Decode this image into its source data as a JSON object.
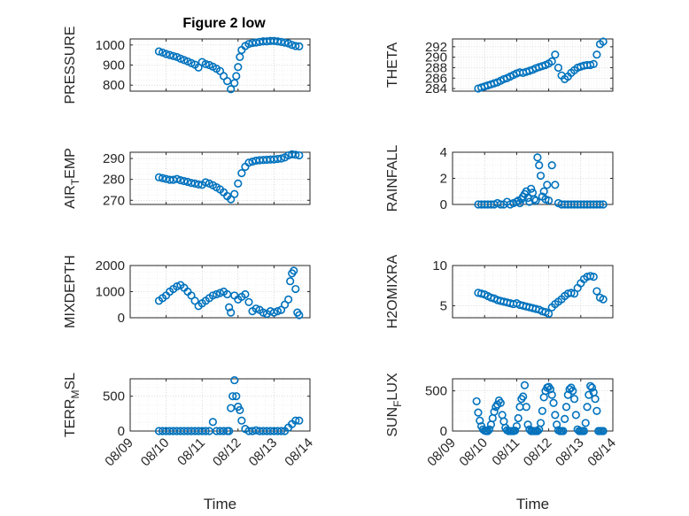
{
  "figure": {
    "title": "Figure 2 low",
    "marker_color": "#0072BD",
    "marker": "circle"
  },
  "chart_data": [
    {
      "type": "scatter",
      "title": "Figure 2 low",
      "ylabel": "PRESSURE",
      "xlabel": "",
      "xlim": [
        0,
        5
      ],
      "ylim": [
        770,
        1030
      ],
      "yticks": [
        800,
        900,
        1000
      ],
      "xtick_labels": [],
      "grid": true,
      "x": [
        0.8,
        0.9,
        1.0,
        1.1,
        1.2,
        1.3,
        1.4,
        1.5,
        1.6,
        1.7,
        1.8,
        1.9,
        2.0,
        2.1,
        2.2,
        2.3,
        2.4,
        2.5,
        2.6,
        2.7,
        2.8,
        2.9,
        2.95,
        3.0,
        3.05,
        3.1,
        3.2,
        3.3,
        3.4,
        3.5,
        3.6,
        3.7,
        3.8,
        3.9,
        4.0,
        4.1,
        4.2,
        4.3,
        4.4,
        4.5,
        4.6,
        4.7
      ],
      "y": [
        968,
        962,
        955,
        950,
        945,
        940,
        932,
        925,
        918,
        910,
        902,
        888,
        915,
        905,
        900,
        892,
        882,
        870,
        845,
        820,
        780,
        810,
        845,
        890,
        940,
        975,
        995,
        1005,
        1010,
        1012,
        1015,
        1018,
        1018,
        1020,
        1020,
        1018,
        1015,
        1012,
        1008,
        1000,
        995,
        993
      ]
    },
    {
      "type": "scatter",
      "title": "",
      "ylabel": "THETA",
      "xlabel": "",
      "xlim": [
        0,
        5
      ],
      "ylim": [
        283.5,
        293.5
      ],
      "yticks": [
        284,
        286,
        288,
        290,
        292
      ],
      "xtick_labels": [],
      "grid": true,
      "x": [
        0.8,
        0.9,
        1.0,
        1.1,
        1.2,
        1.3,
        1.4,
        1.5,
        1.6,
        1.7,
        1.8,
        1.9,
        2.0,
        2.1,
        2.2,
        2.3,
        2.4,
        2.5,
        2.6,
        2.7,
        2.8,
        2.9,
        3.0,
        3.1,
        3.2,
        3.3,
        3.4,
        3.5,
        3.6,
        3.7,
        3.8,
        3.9,
        4.0,
        4.1,
        4.2,
        4.3,
        4.4,
        4.5,
        4.6,
        4.7
      ],
      "y": [
        284.0,
        284.2,
        284.4,
        284.6,
        284.8,
        285.0,
        285.2,
        285.5,
        285.8,
        286.0,
        286.3,
        286.6,
        286.9,
        287.1,
        287.0,
        287.2,
        287.4,
        287.6,
        287.9,
        288.1,
        288.3,
        288.5,
        288.8,
        289.2,
        290.5,
        288.0,
        286.5,
        285.8,
        286.3,
        287.0,
        287.5,
        288.0,
        288.2,
        288.4,
        288.5,
        288.5,
        288.7,
        290.5,
        292.5,
        293.0
      ]
    },
    {
      "type": "scatter",
      "title": "",
      "ylabel": "AIR_TEMP",
      "xlabel": "",
      "xlim": [
        0,
        5
      ],
      "ylim": [
        268,
        293
      ],
      "yticks": [
        270,
        280,
        290
      ],
      "xtick_labels": [],
      "grid": true,
      "x": [
        0.8,
        0.9,
        1.0,
        1.1,
        1.2,
        1.3,
        1.4,
        1.5,
        1.6,
        1.7,
        1.8,
        1.9,
        2.0,
        2.1,
        2.2,
        2.3,
        2.4,
        2.5,
        2.6,
        2.7,
        2.8,
        2.9,
        3.0,
        3.1,
        3.2,
        3.3,
        3.4,
        3.5,
        3.6,
        3.7,
        3.8,
        3.9,
        4.0,
        4.1,
        4.2,
        4.3,
        4.4,
        4.5,
        4.6,
        4.7
      ],
      "y": [
        281,
        280.6,
        280.2,
        279.8,
        279.8,
        280.2,
        279.6,
        279.2,
        278.8,
        278.3,
        278.0,
        277.6,
        277.4,
        278.6,
        278.0,
        277.2,
        276.2,
        275.2,
        273.8,
        272.0,
        270.5,
        273.0,
        278.0,
        283.0,
        286.0,
        288.0,
        288.5,
        289.0,
        289.2,
        289.3,
        289.4,
        289.5,
        289.6,
        289.8,
        290.0,
        290.5,
        291.5,
        292.0,
        291.8,
        291.5
      ]
    },
    {
      "type": "scatter",
      "title": "",
      "ylabel": "RAINFALL",
      "xlabel": "",
      "xlim": [
        0,
        5
      ],
      "ylim": [
        0,
        4
      ],
      "yticks": [
        0,
        2,
        4
      ],
      "xtick_labels": [],
      "grid": true,
      "x": [
        0.8,
        0.9,
        1.0,
        1.1,
        1.2,
        1.3,
        1.4,
        1.5,
        1.6,
        1.7,
        1.8,
        1.9,
        2.0,
        2.05,
        2.1,
        2.15,
        2.2,
        2.25,
        2.3,
        2.35,
        2.4,
        2.45,
        2.5,
        2.55,
        2.6,
        2.65,
        2.7,
        2.75,
        2.8,
        2.85,
        2.9,
        2.95,
        3.0,
        3.1,
        3.2,
        3.3,
        3.4,
        3.5,
        3.6,
        3.7,
        3.8,
        3.9,
        4.0,
        4.1,
        4.2,
        4.3,
        4.4,
        4.5,
        4.6,
        4.7
      ],
      "y": [
        0,
        0,
        0,
        0,
        0,
        0,
        0.1,
        0,
        0,
        0.2,
        0,
        0.1,
        0.2,
        0.3,
        0.1,
        0.4,
        0.6,
        0.8,
        1.0,
        0.5,
        0.2,
        1.2,
        0.9,
        0.4,
        0.3,
        3.6,
        3.0,
        2.2,
        0.6,
        1.0,
        0.4,
        1.5,
        0.3,
        3.0,
        1.5,
        0.1,
        0,
        0,
        0,
        0,
        0,
        0,
        0,
        0,
        0,
        0,
        0,
        0,
        0,
        0
      ]
    },
    {
      "type": "scatter",
      "title": "",
      "ylabel": "MIXDEPTH",
      "xlabel": "",
      "xlim": [
        0,
        5
      ],
      "ylim": [
        0,
        2000
      ],
      "yticks": [
        0,
        1000,
        2000
      ],
      "xtick_labels": [],
      "grid": true,
      "x": [
        0.8,
        0.9,
        1.0,
        1.1,
        1.2,
        1.3,
        1.4,
        1.5,
        1.6,
        1.7,
        1.8,
        1.9,
        2.0,
        2.1,
        2.2,
        2.3,
        2.4,
        2.5,
        2.6,
        2.7,
        2.75,
        2.8,
        2.9,
        3.0,
        3.1,
        3.2,
        3.3,
        3.4,
        3.5,
        3.6,
        3.7,
        3.8,
        3.9,
        4.0,
        4.1,
        4.2,
        4.3,
        4.4,
        4.45,
        4.5,
        4.55,
        4.6,
        4.65,
        4.7
      ],
      "y": [
        650,
        750,
        850,
        1000,
        1100,
        1200,
        1250,
        1150,
        1000,
        850,
        650,
        450,
        550,
        650,
        750,
        850,
        900,
        950,
        1000,
        900,
        400,
        200,
        850,
        700,
        800,
        900,
        600,
        250,
        350,
        300,
        200,
        150,
        250,
        200,
        250,
        300,
        500,
        700,
        1400,
        1700,
        1800,
        1100,
        200,
        100
      ]
    },
    {
      "type": "scatter",
      "title": "",
      "ylabel": "H2OMIXRA",
      "xlabel": "",
      "xlim": [
        0,
        5
      ],
      "ylim": [
        3.5,
        10
      ],
      "yticks": [
        5,
        10
      ],
      "xtick_labels": [],
      "grid": true,
      "x": [
        0.8,
        0.9,
        1.0,
        1.1,
        1.2,
        1.3,
        1.4,
        1.5,
        1.6,
        1.7,
        1.8,
        1.9,
        2.0,
        2.1,
        2.2,
        2.3,
        2.4,
        2.5,
        2.6,
        2.7,
        2.8,
        2.9,
        3.0,
        3.1,
        3.2,
        3.3,
        3.4,
        3.5,
        3.6,
        3.7,
        3.8,
        3.9,
        4.0,
        4.1,
        4.2,
        4.3,
        4.4,
        4.5,
        4.6,
        4.7
      ],
      "y": [
        6.6,
        6.5,
        6.4,
        6.2,
        6.0,
        5.9,
        5.7,
        5.6,
        5.5,
        5.4,
        5.3,
        5.2,
        5.3,
        5.1,
        5.0,
        4.9,
        4.8,
        4.7,
        4.6,
        4.5,
        4.3,
        4.2,
        4.0,
        4.8,
        5.2,
        5.5,
        5.8,
        6.2,
        6.5,
        6.6,
        6.5,
        7.2,
        7.8,
        8.3,
        8.6,
        8.7,
        8.6,
        6.8,
        6.0,
        5.8
      ]
    },
    {
      "type": "scatter",
      "title": "",
      "ylabel": "TERR_MSL",
      "xlabel": "Time",
      "xlim": [
        0,
        5
      ],
      "ylim": [
        0,
        750
      ],
      "yticks": [
        0,
        500
      ],
      "xtick_labels": [
        "08/09",
        "08/10",
        "08/11",
        "08/12",
        "08/13",
        "08/14"
      ],
      "grid": true,
      "x": [
        0.8,
        0.9,
        1.0,
        1.1,
        1.2,
        1.3,
        1.4,
        1.5,
        1.6,
        1.7,
        1.8,
        1.9,
        2.0,
        2.1,
        2.2,
        2.3,
        2.4,
        2.5,
        2.6,
        2.7,
        2.75,
        2.8,
        2.85,
        2.9,
        2.95,
        3.0,
        3.05,
        3.1,
        3.2,
        3.3,
        3.4,
        3.5,
        3.6,
        3.7,
        3.8,
        3.9,
        4.0,
        4.1,
        4.2,
        4.3,
        4.4,
        4.5,
        4.6,
        4.7
      ],
      "y": [
        0,
        0,
        0,
        0,
        0,
        0,
        0,
        0,
        0,
        0,
        0,
        0,
        0,
        0,
        0,
        130,
        0,
        0,
        0,
        0,
        0,
        330,
        500,
        730,
        500,
        350,
        300,
        150,
        30,
        0,
        0,
        10,
        0,
        0,
        0,
        0,
        0,
        0,
        0,
        0,
        50,
        100,
        150,
        150
      ]
    },
    {
      "type": "scatter",
      "title": "",
      "ylabel": "SUN_FLUX",
      "xlabel": "Time",
      "xlim": [
        0,
        5
      ],
      "ylim": [
        0,
        650
      ],
      "yticks": [
        0,
        500
      ],
      "xtick_labels": [
        "08/09",
        "08/10",
        "08/11",
        "08/12",
        "08/13",
        "08/14"
      ],
      "grid": true,
      "x": [
        0.75,
        0.8,
        0.85,
        0.9,
        0.95,
        1.0,
        1.05,
        1.1,
        1.15,
        1.2,
        1.25,
        1.3,
        1.35,
        1.4,
        1.45,
        1.5,
        1.55,
        1.6,
        1.65,
        1.7,
        1.75,
        1.8,
        1.85,
        1.9,
        1.95,
        2.0,
        2.05,
        2.1,
        2.15,
        2.2,
        2.25,
        2.3,
        2.35,
        2.4,
        2.45,
        2.5,
        2.55,
        2.6,
        2.65,
        2.7,
        2.75,
        2.8,
        2.85,
        2.9,
        2.95,
        3.0,
        3.05,
        3.1,
        3.15,
        3.2,
        3.25,
        3.3,
        3.35,
        3.4,
        3.45,
        3.5,
        3.55,
        3.6,
        3.65,
        3.7,
        3.75,
        3.8,
        3.85,
        3.9,
        3.95,
        4.0,
        4.05,
        4.1,
        4.15,
        4.2,
        4.25,
        4.3,
        4.35,
        4.4,
        4.45,
        4.5,
        4.55,
        4.6,
        4.65,
        4.7
      ],
      "y": [
        370,
        230,
        130,
        60,
        20,
        5,
        0,
        0,
        20,
        80,
        160,
        240,
        300,
        330,
        380,
        350,
        200,
        120,
        40,
        10,
        0,
        0,
        0,
        0,
        5,
        60,
        160,
        300,
        400,
        430,
        570,
        300,
        80,
        20,
        0,
        0,
        0,
        0,
        0,
        20,
        100,
        250,
        420,
        500,
        540,
        550,
        520,
        450,
        350,
        200,
        80,
        10,
        0,
        0,
        0,
        150,
        300,
        450,
        520,
        540,
        500,
        400,
        200,
        20,
        0,
        0,
        0,
        0,
        100,
        300,
        450,
        560,
        540,
        480,
        400,
        250,
        0,
        0,
        0,
        0
      ]
    }
  ]
}
